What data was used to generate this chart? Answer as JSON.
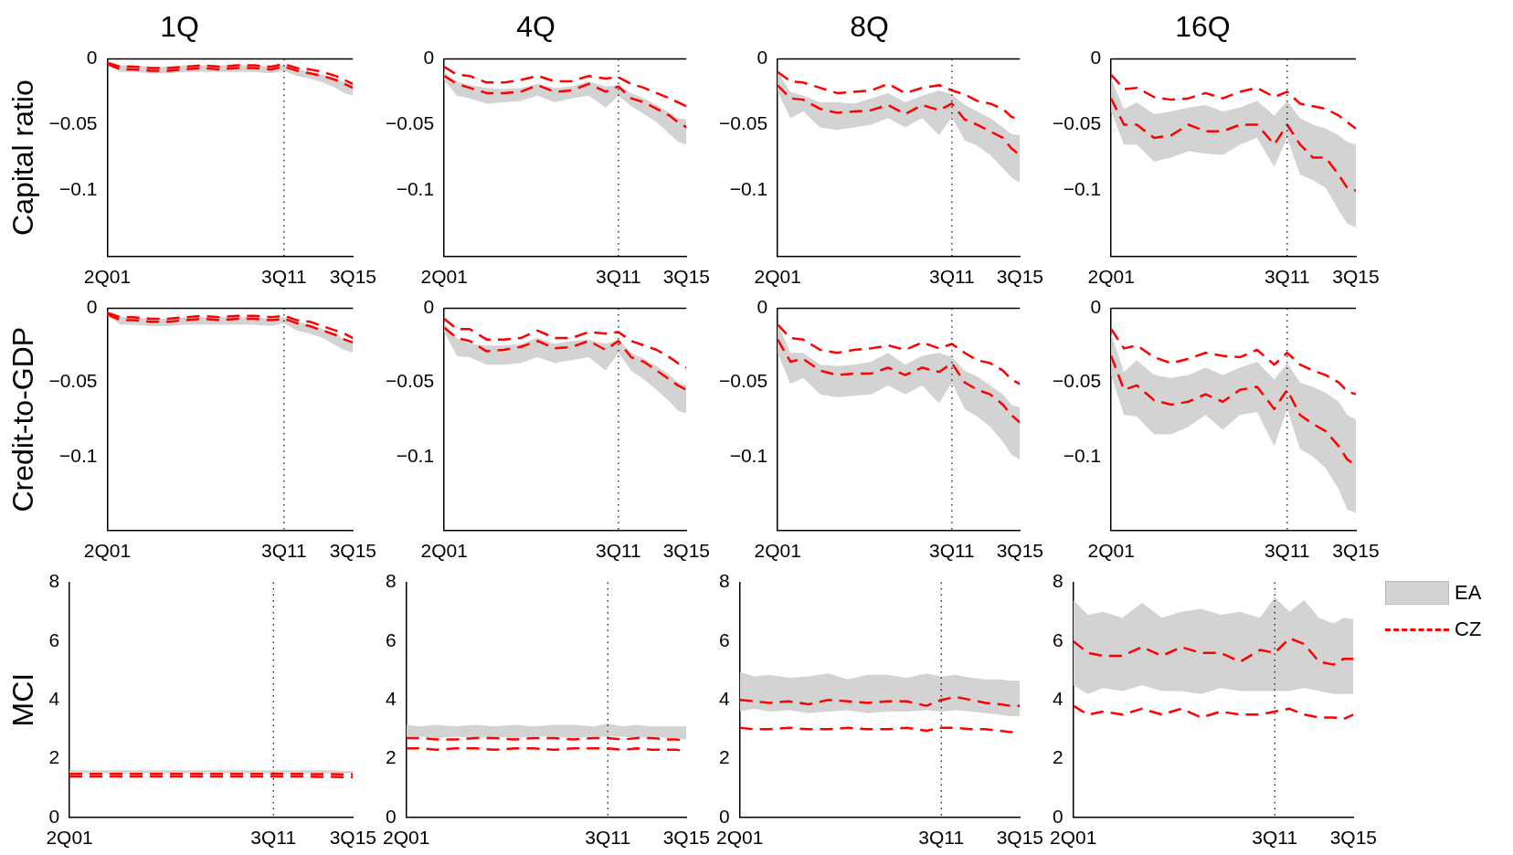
{
  "chart_data": [
    {
      "type": "line",
      "title": "1Q",
      "ylabel": "Capital ratio",
      "x": [
        "2001-04",
        "2002-01",
        "2002-10",
        "2003-10",
        "2004-10",
        "2005-10",
        "2006-10",
        "2007-10",
        "2008-10",
        "2009-10",
        "2010-10",
        "2011-07",
        "2012-04",
        "2013-01",
        "2013-10",
        "2014-07",
        "2015-01",
        "2015-07"
      ],
      "xlim": [
        "2001-04",
        "2015-07"
      ],
      "xticks": [
        {
          "value": "2001-04",
          "label": "2Q01"
        },
        {
          "value": "2011-07",
          "label": "3Q11"
        },
        {
          "value": "2015-07",
          "label": "3Q15"
        }
      ],
      "ylim": [
        -0.15,
        0
      ],
      "yticks": [
        -0.1,
        -0.05,
        0
      ],
      "ref_lines": [
        {
          "axis": "x",
          "value": "2011-07",
          "line_style": "dotted",
          "color": "#000000"
        },
        {
          "axis": "y",
          "value": 0,
          "line_style": "solid",
          "color": "#000000"
        }
      ],
      "series": [
        {
          "type": "line",
          "color": "#d3d3d3",
          "values": [
            null,
            null,
            null,
            null,
            null,
            null,
            null,
            null,
            null,
            null,
            null,
            null,
            null,
            null,
            null,
            null,
            null,
            null
          ],
          "upper": [
            -0.002,
            -0.005,
            -0.005,
            -0.006,
            -0.006,
            -0.005,
            -0.005,
            -0.005,
            -0.005,
            -0.005,
            -0.006,
            -0.005,
            -0.008,
            -0.01,
            -0.012,
            -0.015,
            -0.018,
            -0.02
          ],
          "lower": [
            -0.005,
            -0.01,
            -0.01,
            -0.011,
            -0.011,
            -0.01,
            -0.01,
            -0.01,
            -0.01,
            -0.01,
            -0.011,
            -0.009,
            -0.013,
            -0.015,
            -0.018,
            -0.022,
            -0.026,
            -0.028
          ]
        },
        {
          "type": "line",
          "color": "#ff0000",
          "line_style": "dashed",
          "values": [
            -0.003,
            -0.006,
            -0.006,
            -0.007,
            -0.007,
            -0.006,
            -0.005,
            -0.006,
            -0.005,
            -0.005,
            -0.006,
            -0.004,
            -0.007,
            -0.008,
            -0.01,
            -0.013,
            -0.016,
            -0.019
          ]
        },
        {
          "type": "line",
          "color": "#ff0000",
          "line_style": "dashed",
          "values": [
            -0.004,
            -0.008,
            -0.008,
            -0.009,
            -0.009,
            -0.008,
            -0.007,
            -0.008,
            -0.007,
            -0.007,
            -0.008,
            -0.006,
            -0.009,
            -0.011,
            -0.013,
            -0.016,
            -0.019,
            -0.022
          ]
        }
      ]
    },
    {
      "type": "line",
      "title": "4Q",
      "x": [
        "2001-04",
        "2002-01",
        "2002-10",
        "2003-10",
        "2004-10",
        "2005-10",
        "2006-10",
        "2007-10",
        "2008-10",
        "2009-10",
        "2010-10",
        "2011-07",
        "2012-04",
        "2013-01",
        "2013-10",
        "2014-07",
        "2015-01",
        "2015-07"
      ],
      "xlim": [
        "2001-04",
        "2015-07"
      ],
      "xticks": [
        {
          "value": "2001-04",
          "label": "2Q01"
        },
        {
          "value": "2011-07",
          "label": "3Q11"
        },
        {
          "value": "2015-07",
          "label": "3Q15"
        }
      ],
      "ylim": [
        -0.15,
        0
      ],
      "yticks": [
        -0.1,
        -0.05,
        0
      ],
      "ref_lines": [
        {
          "axis": "x",
          "value": "2011-07",
          "line_style": "dotted",
          "color": "#000000"
        },
        {
          "axis": "y",
          "value": 0,
          "line_style": "solid",
          "color": "#000000"
        }
      ],
      "series": [
        {
          "type": "line",
          "color": "#d3d3d3",
          "values": [
            null,
            null,
            null,
            null,
            null,
            null,
            null,
            null,
            null,
            null,
            null,
            null,
            null,
            null,
            null,
            null,
            null,
            null
          ],
          "upper": [
            -0.01,
            -0.017,
            -0.02,
            -0.022,
            -0.023,
            -0.022,
            -0.019,
            -0.022,
            -0.021,
            -0.017,
            -0.021,
            -0.02,
            -0.026,
            -0.03,
            -0.035,
            -0.041,
            -0.045,
            -0.046
          ],
          "lower": [
            -0.016,
            -0.028,
            -0.03,
            -0.034,
            -0.033,
            -0.032,
            -0.028,
            -0.033,
            -0.03,
            -0.028,
            -0.037,
            -0.028,
            -0.036,
            -0.042,
            -0.048,
            -0.057,
            -0.063,
            -0.065
          ]
        },
        {
          "type": "line",
          "color": "#ff0000",
          "line_style": "dashed",
          "values": [
            -0.006,
            -0.012,
            -0.013,
            -0.018,
            -0.018,
            -0.016,
            -0.013,
            -0.017,
            -0.017,
            -0.013,
            -0.015,
            -0.014,
            -0.019,
            -0.022,
            -0.026,
            -0.03,
            -0.033,
            -0.036
          ]
        },
        {
          "type": "line",
          "color": "#ff0000",
          "line_style": "dashed",
          "values": [
            -0.013,
            -0.019,
            -0.022,
            -0.026,
            -0.026,
            -0.025,
            -0.02,
            -0.025,
            -0.024,
            -0.019,
            -0.025,
            -0.021,
            -0.03,
            -0.033,
            -0.038,
            -0.043,
            -0.048,
            -0.052
          ]
        }
      ]
    },
    {
      "type": "line",
      "title": "8Q",
      "x": [
        "2001-04",
        "2002-01",
        "2002-10",
        "2003-10",
        "2004-10",
        "2005-10",
        "2006-10",
        "2007-10",
        "2008-10",
        "2009-10",
        "2010-10",
        "2011-07",
        "2012-04",
        "2013-01",
        "2013-10",
        "2014-07",
        "2015-01",
        "2015-07"
      ],
      "xlim": [
        "2001-04",
        "2015-07"
      ],
      "xticks": [
        {
          "value": "2001-04",
          "label": "2Q01"
        },
        {
          "value": "2011-07",
          "label": "3Q11"
        },
        {
          "value": "2015-07",
          "label": "3Q15"
        }
      ],
      "ylim": [
        -0.15,
        0
      ],
      "yticks": [
        -0.1,
        -0.05,
        0
      ],
      "ref_lines": [
        {
          "axis": "x",
          "value": "2011-07",
          "line_style": "dotted",
          "color": "#000000"
        },
        {
          "axis": "y",
          "value": 0,
          "line_style": "solid",
          "color": "#000000"
        }
      ],
      "series": [
        {
          "type": "line",
          "color": "#d3d3d3",
          "values": [
            null,
            null,
            null,
            null,
            null,
            null,
            null,
            null,
            null,
            null,
            null,
            null,
            null,
            null,
            null,
            null,
            null,
            null
          ],
          "upper": [
            -0.01,
            -0.025,
            -0.028,
            -0.033,
            -0.033,
            -0.034,
            -0.03,
            -0.026,
            -0.033,
            -0.028,
            -0.024,
            -0.027,
            -0.035,
            -0.04,
            -0.045,
            -0.052,
            -0.057,
            -0.058
          ],
          "lower": [
            -0.025,
            -0.045,
            -0.04,
            -0.052,
            -0.054,
            -0.052,
            -0.05,
            -0.045,
            -0.052,
            -0.045,
            -0.058,
            -0.044,
            -0.062,
            -0.066,
            -0.073,
            -0.083,
            -0.09,
            -0.094
          ]
        },
        {
          "type": "line",
          "color": "#ff0000",
          "line_style": "dashed",
          "values": [
            -0.01,
            -0.017,
            -0.018,
            -0.022,
            -0.026,
            -0.025,
            -0.024,
            -0.019,
            -0.026,
            -0.022,
            -0.02,
            -0.024,
            -0.027,
            -0.032,
            -0.034,
            -0.038,
            -0.044,
            -0.046
          ]
        },
        {
          "type": "line",
          "color": "#ff0000",
          "line_style": "dashed",
          "values": [
            -0.02,
            -0.03,
            -0.031,
            -0.038,
            -0.041,
            -0.04,
            -0.039,
            -0.035,
            -0.042,
            -0.035,
            -0.039,
            -0.034,
            -0.046,
            -0.05,
            -0.055,
            -0.06,
            -0.068,
            -0.073
          ]
        }
      ]
    },
    {
      "type": "line",
      "title": "16Q",
      "x": [
        "2001-04",
        "2002-01",
        "2002-10",
        "2003-10",
        "2004-10",
        "2005-10",
        "2006-10",
        "2007-10",
        "2008-10",
        "2009-10",
        "2010-10",
        "2011-07",
        "2012-04",
        "2013-01",
        "2013-10",
        "2014-07",
        "2015-01",
        "2015-07"
      ],
      "xlim": [
        "2001-04",
        "2015-07"
      ],
      "xticks": [
        {
          "value": "2001-04",
          "label": "2Q01"
        },
        {
          "value": "2011-07",
          "label": "3Q11"
        },
        {
          "value": "2015-07",
          "label": "3Q15"
        }
      ],
      "ylim": [
        -0.15,
        0
      ],
      "yticks": [
        -0.1,
        -0.05,
        0
      ],
      "ref_lines": [
        {
          "axis": "x",
          "value": "2011-07",
          "line_style": "dotted",
          "color": "#000000"
        },
        {
          "axis": "y",
          "value": 0,
          "line_style": "solid",
          "color": "#000000"
        }
      ],
      "series": [
        {
          "type": "line",
          "color": "#d3d3d3",
          "values": [
            null,
            null,
            null,
            null,
            null,
            null,
            null,
            null,
            null,
            null,
            null,
            null,
            null,
            null,
            null,
            null,
            null,
            null
          ],
          "upper": [
            -0.015,
            -0.038,
            -0.033,
            -0.042,
            -0.04,
            -0.037,
            -0.035,
            -0.04,
            -0.037,
            -0.032,
            -0.043,
            -0.032,
            -0.045,
            -0.05,
            -0.053,
            -0.058,
            -0.063,
            -0.065
          ],
          "lower": [
            -0.04,
            -0.065,
            -0.065,
            -0.078,
            -0.075,
            -0.07,
            -0.072,
            -0.073,
            -0.065,
            -0.06,
            -0.082,
            -0.06,
            -0.088,
            -0.092,
            -0.098,
            -0.115,
            -0.125,
            -0.128
          ]
        },
        {
          "type": "line",
          "color": "#ff0000",
          "line_style": "dashed",
          "values": [
            -0.012,
            -0.023,
            -0.022,
            -0.029,
            -0.031,
            -0.03,
            -0.026,
            -0.03,
            -0.025,
            -0.022,
            -0.029,
            -0.025,
            -0.034,
            -0.036,
            -0.038,
            -0.043,
            -0.048,
            -0.053
          ]
        },
        {
          "type": "line",
          "color": "#ff0000",
          "line_style": "dashed",
          "values": [
            -0.03,
            -0.05,
            -0.05,
            -0.06,
            -0.058,
            -0.05,
            -0.055,
            -0.055,
            -0.05,
            -0.05,
            -0.065,
            -0.05,
            -0.065,
            -0.075,
            -0.075,
            -0.088,
            -0.098,
            -0.1
          ]
        }
      ]
    },
    {
      "type": "line",
      "ylabel": "Credit-to-GDP",
      "x": [
        "2001-04",
        "2002-01",
        "2002-10",
        "2003-10",
        "2004-10",
        "2005-10",
        "2006-10",
        "2007-10",
        "2008-10",
        "2009-10",
        "2010-10",
        "2011-07",
        "2012-04",
        "2013-01",
        "2013-10",
        "2014-07",
        "2015-01",
        "2015-07"
      ],
      "xlim": [
        "2001-04",
        "2015-07"
      ],
      "xticks": [
        {
          "value": "2001-04",
          "label": "2Q01"
        },
        {
          "value": "2011-07",
          "label": "3Q11"
        },
        {
          "value": "2015-07",
          "label": "3Q15"
        }
      ],
      "ylim": [
        -0.15,
        0
      ],
      "yticks": [
        -0.1,
        -0.05,
        0
      ],
      "ref_lines": [
        {
          "axis": "x",
          "value": "2011-07",
          "line_style": "dotted",
          "color": "#000000"
        },
        {
          "axis": "y",
          "value": 0,
          "line_style": "solid",
          "color": "#000000"
        }
      ],
      "series": [
        {
          "type": "line",
          "color": "#d3d3d3",
          "values": [
            null,
            null,
            null,
            null,
            null,
            null,
            null,
            null,
            null,
            null,
            null,
            null,
            null,
            null,
            null,
            null,
            null,
            null
          ],
          "upper": [
            -0.002,
            -0.006,
            -0.006,
            -0.007,
            -0.007,
            -0.006,
            -0.006,
            -0.006,
            -0.006,
            -0.006,
            -0.007,
            -0.006,
            -0.009,
            -0.011,
            -0.014,
            -0.017,
            -0.021,
            -0.023
          ],
          "lower": [
            -0.005,
            -0.011,
            -0.011,
            -0.012,
            -0.012,
            -0.011,
            -0.011,
            -0.011,
            -0.011,
            -0.011,
            -0.012,
            -0.01,
            -0.015,
            -0.017,
            -0.02,
            -0.025,
            -0.028,
            -0.03
          ]
        },
        {
          "type": "line",
          "color": "#ff0000",
          "line_style": "dashed",
          "values": [
            -0.003,
            -0.006,
            -0.006,
            -0.007,
            -0.007,
            -0.006,
            -0.005,
            -0.006,
            -0.005,
            -0.005,
            -0.006,
            -0.005,
            -0.008,
            -0.009,
            -0.012,
            -0.015,
            -0.017,
            -0.02
          ]
        },
        {
          "type": "line",
          "color": "#ff0000",
          "line_style": "dashed",
          "values": [
            -0.004,
            -0.008,
            -0.008,
            -0.009,
            -0.009,
            -0.008,
            -0.007,
            -0.008,
            -0.007,
            -0.007,
            -0.008,
            -0.007,
            -0.01,
            -0.012,
            -0.015,
            -0.018,
            -0.021,
            -0.023
          ]
        }
      ]
    },
    {
      "type": "line",
      "x": [
        "2001-04",
        "2002-01",
        "2002-10",
        "2003-10",
        "2004-10",
        "2005-10",
        "2006-10",
        "2007-10",
        "2008-10",
        "2009-10",
        "2010-10",
        "2011-07",
        "2012-04",
        "2013-01",
        "2013-10",
        "2014-07",
        "2015-01",
        "2015-07"
      ],
      "xlim": [
        "2001-04",
        "2015-07"
      ],
      "xticks": [
        {
          "value": "2001-04",
          "label": "2Q01"
        },
        {
          "value": "2011-07",
          "label": "3Q11"
        },
        {
          "value": "2015-07",
          "label": "3Q15"
        }
      ],
      "ylim": [
        -0.15,
        0
      ],
      "yticks": [
        -0.1,
        -0.05,
        0
      ],
      "ref_lines": [
        {
          "axis": "x",
          "value": "2011-07",
          "line_style": "dotted",
          "color": "#000000"
        },
        {
          "axis": "y",
          "value": 0,
          "line_style": "solid",
          "color": "#000000"
        }
      ],
      "series": [
        {
          "type": "line",
          "color": "#d3d3d3",
          "values": [
            null,
            null,
            null,
            null,
            null,
            null,
            null,
            null,
            null,
            null,
            null,
            null,
            null,
            null,
            null,
            null,
            null,
            null
          ],
          "upper": [
            -0.01,
            -0.02,
            -0.024,
            -0.025,
            -0.025,
            -0.024,
            -0.02,
            -0.024,
            -0.022,
            -0.021,
            -0.024,
            -0.021,
            -0.03,
            -0.034,
            -0.039,
            -0.045,
            -0.05,
            -0.052
          ],
          "lower": [
            -0.016,
            -0.032,
            -0.033,
            -0.038,
            -0.038,
            -0.037,
            -0.033,
            -0.037,
            -0.035,
            -0.033,
            -0.042,
            -0.03,
            -0.042,
            -0.048,
            -0.055,
            -0.063,
            -0.069,
            -0.071
          ]
        },
        {
          "type": "line",
          "color": "#ff0000",
          "line_style": "dashed",
          "values": [
            -0.007,
            -0.014,
            -0.014,
            -0.021,
            -0.021,
            -0.02,
            -0.015,
            -0.02,
            -0.02,
            -0.016,
            -0.017,
            -0.016,
            -0.022,
            -0.025,
            -0.028,
            -0.033,
            -0.037,
            -0.04
          ]
        },
        {
          "type": "line",
          "color": "#ff0000",
          "line_style": "dashed",
          "values": [
            -0.013,
            -0.02,
            -0.022,
            -0.029,
            -0.028,
            -0.026,
            -0.022,
            -0.027,
            -0.026,
            -0.022,
            -0.028,
            -0.022,
            -0.033,
            -0.036,
            -0.042,
            -0.048,
            -0.052,
            -0.055
          ]
        }
      ]
    },
    {
      "type": "line",
      "x": [
        "2001-04",
        "2002-01",
        "2002-10",
        "2003-10",
        "2004-10",
        "2005-10",
        "2006-10",
        "2007-10",
        "2008-10",
        "2009-10",
        "2010-10",
        "2011-07",
        "2012-04",
        "2013-01",
        "2013-10",
        "2014-07",
        "2015-01",
        "2015-07"
      ],
      "xlim": [
        "2001-04",
        "2015-07"
      ],
      "xticks": [
        {
          "value": "2001-04",
          "label": "2Q01"
        },
        {
          "value": "2011-07",
          "label": "3Q11"
        },
        {
          "value": "2015-07",
          "label": "3Q15"
        }
      ],
      "ylim": [
        -0.15,
        0
      ],
      "yticks": [
        -0.1,
        -0.05,
        0
      ],
      "ref_lines": [
        {
          "axis": "x",
          "value": "2011-07",
          "line_style": "dotted",
          "color": "#000000"
        },
        {
          "axis": "y",
          "value": 0,
          "line_style": "solid",
          "color": "#000000"
        }
      ],
      "series": [
        {
          "type": "line",
          "color": "#d3d3d3",
          "values": [
            null,
            null,
            null,
            null,
            null,
            null,
            null,
            null,
            null,
            null,
            null,
            null,
            null,
            null,
            null,
            null,
            null,
            null
          ],
          "upper": [
            -0.01,
            -0.03,
            -0.03,
            -0.038,
            -0.039,
            -0.038,
            -0.036,
            -0.03,
            -0.038,
            -0.032,
            -0.03,
            -0.033,
            -0.042,
            -0.046,
            -0.052,
            -0.058,
            -0.065,
            -0.067
          ],
          "lower": [
            -0.03,
            -0.051,
            -0.047,
            -0.058,
            -0.06,
            -0.059,
            -0.058,
            -0.052,
            -0.058,
            -0.052,
            -0.064,
            -0.05,
            -0.068,
            -0.073,
            -0.08,
            -0.09,
            -0.099,
            -0.102
          ]
        },
        {
          "type": "line",
          "color": "#ff0000",
          "line_style": "dashed",
          "values": [
            -0.011,
            -0.02,
            -0.021,
            -0.028,
            -0.03,
            -0.028,
            -0.027,
            -0.025,
            -0.028,
            -0.023,
            -0.027,
            -0.024,
            -0.03,
            -0.035,
            -0.037,
            -0.042,
            -0.048,
            -0.051
          ]
        },
        {
          "type": "line",
          "color": "#ff0000",
          "line_style": "dashed",
          "values": [
            -0.021,
            -0.036,
            -0.034,
            -0.042,
            -0.045,
            -0.044,
            -0.044,
            -0.04,
            -0.045,
            -0.04,
            -0.043,
            -0.037,
            -0.05,
            -0.055,
            -0.058,
            -0.065,
            -0.072,
            -0.077
          ]
        }
      ]
    },
    {
      "type": "line",
      "x": [
        "2001-04",
        "2002-01",
        "2002-10",
        "2003-10",
        "2004-10",
        "2005-10",
        "2006-10",
        "2007-10",
        "2008-10",
        "2009-10",
        "2010-10",
        "2011-07",
        "2012-04",
        "2013-01",
        "2013-10",
        "2014-07",
        "2015-01",
        "2015-07"
      ],
      "xlim": [
        "2001-04",
        "2015-07"
      ],
      "xticks": [
        {
          "value": "2001-04",
          "label": "2Q01"
        },
        {
          "value": "2011-07",
          "label": "3Q11"
        },
        {
          "value": "2015-07",
          "label": "3Q15"
        }
      ],
      "ylim": [
        -0.15,
        0
      ],
      "yticks": [
        -0.1,
        -0.05,
        0
      ],
      "ref_lines": [
        {
          "axis": "x",
          "value": "2011-07",
          "line_style": "dotted",
          "color": "#000000"
        },
        {
          "axis": "y",
          "value": 0,
          "line_style": "solid",
          "color": "#000000"
        }
      ],
      "series": [
        {
          "type": "line",
          "color": "#d3d3d3",
          "values": [
            null,
            null,
            null,
            null,
            null,
            null,
            null,
            null,
            null,
            null,
            null,
            null,
            null,
            null,
            null,
            null,
            null,
            null
          ],
          "upper": [
            -0.017,
            -0.043,
            -0.035,
            -0.045,
            -0.047,
            -0.045,
            -0.04,
            -0.045,
            -0.04,
            -0.036,
            -0.048,
            -0.037,
            -0.05,
            -0.053,
            -0.057,
            -0.063,
            -0.072,
            -0.075
          ],
          "lower": [
            -0.045,
            -0.072,
            -0.073,
            -0.085,
            -0.085,
            -0.08,
            -0.072,
            -0.082,
            -0.072,
            -0.07,
            -0.093,
            -0.068,
            -0.095,
            -0.1,
            -0.108,
            -0.122,
            -0.136,
            -0.138
          ]
        },
        {
          "type": "line",
          "color": "#ff0000",
          "line_style": "dashed",
          "values": [
            -0.014,
            -0.027,
            -0.025,
            -0.033,
            -0.037,
            -0.034,
            -0.03,
            -0.032,
            -0.033,
            -0.028,
            -0.038,
            -0.03,
            -0.038,
            -0.042,
            -0.045,
            -0.05,
            -0.056,
            -0.058
          ]
        },
        {
          "type": "line",
          "color": "#ff0000",
          "line_style": "dashed",
          "values": [
            -0.032,
            -0.055,
            -0.052,
            -0.062,
            -0.065,
            -0.063,
            -0.058,
            -0.063,
            -0.055,
            -0.053,
            -0.068,
            -0.055,
            -0.072,
            -0.078,
            -0.083,
            -0.093,
            -0.102,
            -0.106
          ]
        }
      ]
    },
    {
      "type": "line",
      "ylabel": "MCI",
      "x": [
        "2001-04",
        "2002-01",
        "2002-10",
        "2003-10",
        "2004-10",
        "2005-10",
        "2006-10",
        "2007-10",
        "2008-10",
        "2009-10",
        "2010-10",
        "2011-07",
        "2012-04",
        "2013-01",
        "2013-10",
        "2014-07",
        "2015-01",
        "2015-07"
      ],
      "xlim": [
        "2001-04",
        "2015-07"
      ],
      "xticks": [
        {
          "value": "2001-04",
          "label": "2Q01"
        },
        {
          "value": "2011-07",
          "label": "3Q11"
        },
        {
          "value": "2015-07",
          "label": "3Q15"
        }
      ],
      "ylim": [
        0,
        8
      ],
      "yticks": [
        0,
        2,
        4,
        6,
        8
      ],
      "ref_lines": [
        {
          "axis": "x",
          "value": "2011-07",
          "line_style": "dotted",
          "color": "#000000"
        }
      ],
      "series": [
        {
          "type": "line",
          "color": "#d3d3d3",
          "values": [
            null,
            null,
            null,
            null,
            null,
            null,
            null,
            null,
            null,
            null,
            null,
            null,
            null,
            null,
            null,
            null,
            null,
            null
          ],
          "upper": [
            1.6,
            1.6,
            1.6,
            1.6,
            1.6,
            1.6,
            1.6,
            1.6,
            1.6,
            1.6,
            1.6,
            1.6,
            1.6,
            1.6,
            1.6,
            1.6,
            1.58,
            1.58
          ],
          "lower": [
            1.5,
            1.5,
            1.5,
            1.5,
            1.5,
            1.5,
            1.5,
            1.5,
            1.5,
            1.5,
            1.5,
            1.5,
            1.5,
            1.5,
            1.5,
            1.5,
            1.5,
            1.5
          ]
        },
        {
          "type": "line",
          "color": "#ff0000",
          "line_style": "dashed",
          "values": [
            1.48,
            1.48,
            1.48,
            1.48,
            1.48,
            1.48,
            1.48,
            1.48,
            1.48,
            1.48,
            1.48,
            1.48,
            1.48,
            1.48,
            1.47,
            1.47,
            1.46,
            1.46
          ]
        },
        {
          "type": "line",
          "color": "#ff0000",
          "line_style": "dashed",
          "values": [
            1.39,
            1.39,
            1.39,
            1.39,
            1.39,
            1.39,
            1.39,
            1.39,
            1.39,
            1.39,
            1.39,
            1.39,
            1.39,
            1.39,
            1.38,
            1.38,
            1.37,
            1.37
          ]
        }
      ]
    },
    {
      "type": "line",
      "x": [
        "2001-04",
        "2002-01",
        "2002-10",
        "2003-10",
        "2004-10",
        "2005-10",
        "2006-10",
        "2007-10",
        "2008-10",
        "2009-10",
        "2010-10",
        "2011-07",
        "2012-04",
        "2013-01",
        "2013-10",
        "2014-07",
        "2015-01",
        "2015-07"
      ],
      "xlim": [
        "2001-04",
        "2015-07"
      ],
      "xticks": [
        {
          "value": "2001-04",
          "label": "2Q01"
        },
        {
          "value": "2011-07",
          "label": "3Q11"
        },
        {
          "value": "2015-07",
          "label": "3Q15"
        }
      ],
      "ylim": [
        0,
        8
      ],
      "yticks": [
        0,
        2,
        4,
        6,
        8
      ],
      "ref_lines": [
        {
          "axis": "x",
          "value": "2011-07",
          "line_style": "dotted",
          "color": "#000000"
        }
      ],
      "series": [
        {
          "type": "line",
          "color": "#d3d3d3",
          "values": [
            null,
            null,
            null,
            null,
            null,
            null,
            null,
            null,
            null,
            null,
            null,
            null,
            null,
            null,
            null,
            null,
            null,
            null
          ],
          "upper": [
            3.15,
            3.1,
            3.15,
            3.1,
            3.15,
            3.1,
            3.15,
            3.1,
            3.15,
            3.15,
            3.1,
            3.2,
            3.1,
            3.15,
            3.1,
            3.1,
            3.1,
            3.1
          ],
          "lower": [
            2.75,
            2.75,
            2.7,
            2.75,
            2.7,
            2.75,
            2.7,
            2.75,
            2.75,
            2.7,
            2.75,
            2.75,
            2.75,
            2.7,
            2.75,
            2.7,
            2.7,
            2.65
          ]
        },
        {
          "type": "line",
          "color": "#ff0000",
          "line_style": "dashed",
          "values": [
            2.7,
            2.7,
            2.65,
            2.65,
            2.7,
            2.7,
            2.65,
            2.7,
            2.7,
            2.65,
            2.7,
            2.7,
            2.65,
            2.7,
            2.7,
            2.65,
            2.65,
            2.6
          ]
        },
        {
          "type": "line",
          "color": "#ff0000",
          "line_style": "dashed",
          "values": [
            2.35,
            2.35,
            2.3,
            2.35,
            2.35,
            2.3,
            2.35,
            2.35,
            2.3,
            2.35,
            2.35,
            2.35,
            2.3,
            2.35,
            2.3,
            2.3,
            2.3,
            2.25
          ]
        }
      ]
    },
    {
      "type": "line",
      "x": [
        "2001-04",
        "2002-01",
        "2002-10",
        "2003-10",
        "2004-10",
        "2005-10",
        "2006-10",
        "2007-10",
        "2008-10",
        "2009-10",
        "2010-10",
        "2011-07",
        "2012-04",
        "2013-01",
        "2013-10",
        "2014-07",
        "2015-01",
        "2015-07"
      ],
      "xlim": [
        "2001-04",
        "2015-07"
      ],
      "xticks": [
        {
          "value": "2001-04",
          "label": "2Q01"
        },
        {
          "value": "2011-07",
          "label": "3Q11"
        },
        {
          "value": "2015-07",
          "label": "3Q15"
        }
      ],
      "ylim": [
        0,
        8
      ],
      "yticks": [
        0,
        2,
        4,
        6,
        8
      ],
      "ref_lines": [
        {
          "axis": "x",
          "value": "2011-07",
          "line_style": "dotted",
          "color": "#000000"
        }
      ],
      "series": [
        {
          "type": "line",
          "color": "#d3d3d3",
          "values": [
            null,
            null,
            null,
            null,
            null,
            null,
            null,
            null,
            null,
            null,
            null,
            null,
            null,
            null,
            null,
            null,
            null,
            null
          ],
          "upper": [
            4.95,
            4.8,
            4.85,
            4.75,
            4.8,
            4.9,
            4.7,
            4.85,
            4.85,
            4.75,
            4.9,
            4.8,
            4.85,
            4.75,
            4.7,
            4.7,
            4.65,
            4.65
          ],
          "lower": [
            3.6,
            3.7,
            3.6,
            3.65,
            3.55,
            3.6,
            3.65,
            3.55,
            3.6,
            3.6,
            3.65,
            3.6,
            3.65,
            3.6,
            3.55,
            3.5,
            3.45,
            3.45
          ]
        },
        {
          "type": "line",
          "color": "#ff0000",
          "line_style": "dashed",
          "values": [
            4.0,
            3.95,
            3.9,
            3.95,
            3.85,
            4.0,
            3.95,
            3.9,
            3.95,
            3.95,
            3.8,
            4.0,
            4.1,
            4.0,
            3.9,
            3.85,
            3.8,
            3.8
          ]
        },
        {
          "type": "line",
          "color": "#ff0000",
          "line_style": "dashed",
          "values": [
            3.05,
            3.0,
            3.0,
            3.05,
            3.0,
            3.0,
            3.05,
            3.0,
            3.0,
            3.05,
            2.95,
            3.05,
            3.05,
            3.0,
            3.0,
            2.95,
            2.9,
            2.95
          ]
        }
      ]
    },
    {
      "type": "line",
      "x": [
        "2001-04",
        "2002-01",
        "2002-10",
        "2003-10",
        "2004-10",
        "2005-10",
        "2006-10",
        "2007-10",
        "2008-10",
        "2009-10",
        "2010-10",
        "2011-07",
        "2012-04",
        "2013-01",
        "2013-10",
        "2014-07",
        "2015-01",
        "2015-07"
      ],
      "xlim": [
        "2001-04",
        "2015-07"
      ],
      "xticks": [
        {
          "value": "2001-04",
          "label": "2Q01"
        },
        {
          "value": "2011-07",
          "label": "3Q11"
        },
        {
          "value": "2015-07",
          "label": "3Q15"
        }
      ],
      "ylim": [
        0,
        8
      ],
      "yticks": [
        0,
        2,
        4,
        6,
        8
      ],
      "legend": "right",
      "ref_lines": [
        {
          "axis": "x",
          "value": "2011-07",
          "line_style": "dotted",
          "color": "#000000"
        }
      ],
      "series": [
        {
          "name": "EA",
          "type": "line",
          "color": "#d3d3d3",
          "values": [
            null,
            null,
            null,
            null,
            null,
            null,
            null,
            null,
            null,
            null,
            null,
            null,
            null,
            null,
            null,
            null,
            null,
            null
          ],
          "upper": [
            7.4,
            6.9,
            7.0,
            6.8,
            7.3,
            6.8,
            7.0,
            7.1,
            6.9,
            7.0,
            6.8,
            7.5,
            7.0,
            7.4,
            6.8,
            6.6,
            6.8,
            6.75
          ],
          "lower": [
            4.5,
            4.2,
            4.4,
            4.3,
            4.5,
            4.3,
            4.3,
            4.2,
            4.4,
            4.3,
            4.3,
            4.3,
            4.3,
            4.4,
            4.3,
            4.2,
            4.2,
            4.2
          ]
        },
        {
          "name": "CZ",
          "type": "line",
          "color": "#ff0000",
          "line_style": "dashed",
          "values": [
            6.0,
            5.6,
            5.5,
            5.5,
            5.8,
            5.5,
            5.8,
            5.6,
            5.6,
            5.3,
            5.7,
            5.6,
            6.1,
            5.9,
            5.3,
            5.2,
            5.4,
            5.4
          ]
        },
        {
          "type": "line",
          "color": "#ff0000",
          "line_style": "dashed",
          "values": [
            3.8,
            3.5,
            3.6,
            3.5,
            3.7,
            3.5,
            3.7,
            3.4,
            3.6,
            3.5,
            3.5,
            3.6,
            3.7,
            3.5,
            3.4,
            3.4,
            3.35,
            3.5
          ]
        }
      ]
    }
  ]
}
